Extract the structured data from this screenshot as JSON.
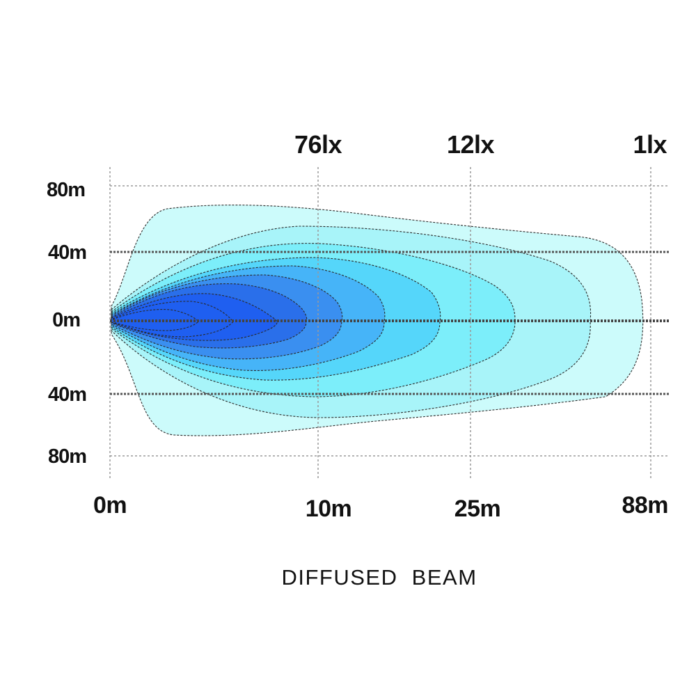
{
  "chart_data": {
    "type": "isolux-contour",
    "title": "DIFFUSED  BEAM",
    "x_ticks": [
      "0m",
      "10m",
      "25m",
      "88m"
    ],
    "y_ticks": [
      "80m",
      "40m",
      "0m",
      "40m",
      "80m"
    ],
    "lux_labels": [
      "76lx",
      "12lx",
      "1lx"
    ],
    "lux_label_distances": [
      "10m",
      "25m",
      "88m"
    ],
    "colors": {
      "outer": "#ccfbfb",
      "level2": "#a8f4f9",
      "level3": "#7ceefa",
      "level4": "#55d6fa",
      "level5": "#46b4f8",
      "level6": "#3a8ff0",
      "core": "#2a6fea",
      "hot": "#1f5ff0"
    }
  }
}
